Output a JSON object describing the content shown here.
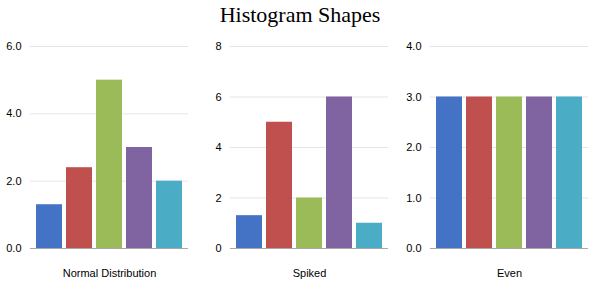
{
  "title": "Histogram Shapes",
  "chart_data": [
    {
      "type": "bar",
      "xlabel": "Normal Distribution",
      "categories": [
        null,
        null,
        null,
        null,
        null
      ],
      "values": [
        1.3,
        2.4,
        5.0,
        3.0,
        2.0
      ],
      "colors": [
        "#4472C4",
        "#C0504D",
        "#9BBB59",
        "#8064A2",
        "#4BACC6"
      ],
      "ylim": [
        0,
        6
      ],
      "yticks": [
        0,
        2,
        4,
        6
      ],
      "grid": true,
      "tick_labels": "y"
    },
    {
      "type": "bar",
      "xlabel": "Spiked",
      "categories": [
        null,
        null,
        null,
        null,
        null
      ],
      "values": [
        1.3,
        5.0,
        2.0,
        6.0,
        1.0
      ],
      "colors": [
        "#4472C4",
        "#C0504D",
        "#9BBB59",
        "#8064A2",
        "#4BACC6"
      ],
      "ylim": [
        0,
        8
      ],
      "yticks": [
        0,
        2,
        4,
        6,
        8
      ],
      "grid": true,
      "tick_labels": "y"
    },
    {
      "type": "bar",
      "xlabel": "Even",
      "categories": [
        null,
        null,
        null,
        null,
        null
      ],
      "values": [
        3.0,
        3.0,
        3.0,
        3.0,
        3.0
      ],
      "colors": [
        "#4472C4",
        "#C0504D",
        "#9BBB59",
        "#8064A2",
        "#4BACC6"
      ],
      "ylim": [
        0,
        4
      ],
      "yticks": [
        0,
        1,
        2,
        3,
        4
      ],
      "grid": true,
      "tick_labels": "y"
    }
  ]
}
